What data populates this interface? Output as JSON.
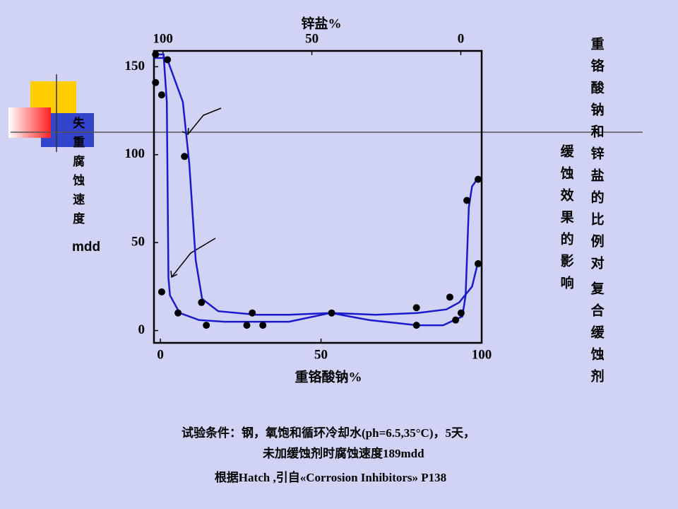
{
  "chart_data": {
    "type": "line",
    "title_parts": [
      "重铬酸钠和锌盐的比例对",
      "复合缓蚀剂",
      "缓蚀效果的影响"
    ],
    "title_colors": [
      "#000000",
      "#cc0000",
      "#000000"
    ],
    "x_label": "重铬酸钠%",
    "x2_label": "锌盐%",
    "y_label": "失重腐蚀速度",
    "y_unit": "mdd",
    "xlim": [
      -2,
      100
    ],
    "xticks": [
      0,
      50,
      100
    ],
    "x2lim": [
      103,
      -7
    ],
    "x2ticks": [
      100,
      50,
      0
    ],
    "ylim": [
      -7,
      159
    ],
    "yticks": [
      0,
      50,
      100,
      150
    ],
    "series": [
      {
        "color": "#1a1acc",
        "markers": false,
        "x": [
          -2,
          1,
          2,
          2.5,
          3,
          6,
          12,
          20,
          40,
          53,
          65,
          80,
          88,
          94,
          95,
          96,
          97,
          99
        ],
        "values": [
          157,
          157,
          130,
          30,
          20,
          10,
          6,
          5,
          5,
          10,
          6,
          3,
          3,
          8,
          20,
          70,
          82,
          87
        ]
      },
      {
        "color": "#1a1acc",
        "markers": false,
        "x": [
          -2,
          2,
          5,
          7,
          9,
          11,
          13,
          18,
          30,
          40,
          53,
          67,
          80,
          89,
          93,
          97,
          99
        ],
        "values": [
          155,
          155,
          140,
          130,
          95,
          40,
          18,
          11,
          9,
          9,
          10,
          9,
          10,
          12,
          16,
          25,
          40
        ]
      },
      {
        "color": "#000000",
        "markers": true,
        "x": [
          -1.5,
          -1.5,
          0.4,
          0.4,
          2.2,
          5.5,
          7.5,
          12.8,
          14.3,
          26.9,
          28.6,
          31.9,
          53.3,
          79.7,
          79.7,
          90.1,
          91.9,
          93.6,
          95.4,
          98.9,
          98.9
        ],
        "values": [
          157,
          141,
          134,
          22,
          154,
          10,
          99,
          16,
          3,
          3,
          10,
          3,
          10,
          13,
          3,
          19,
          6,
          10,
          74,
          86,
          38
        ]
      }
    ],
    "notes": [
      "试验条件：钢，氧饱和循环冷却水(ph=6.5,35°C)，5天，",
      "未加缓蚀剂时腐蚀速度189mdd",
      "根据Hatch ,引自«Corrosion Inhibitors»  P138"
    ]
  }
}
